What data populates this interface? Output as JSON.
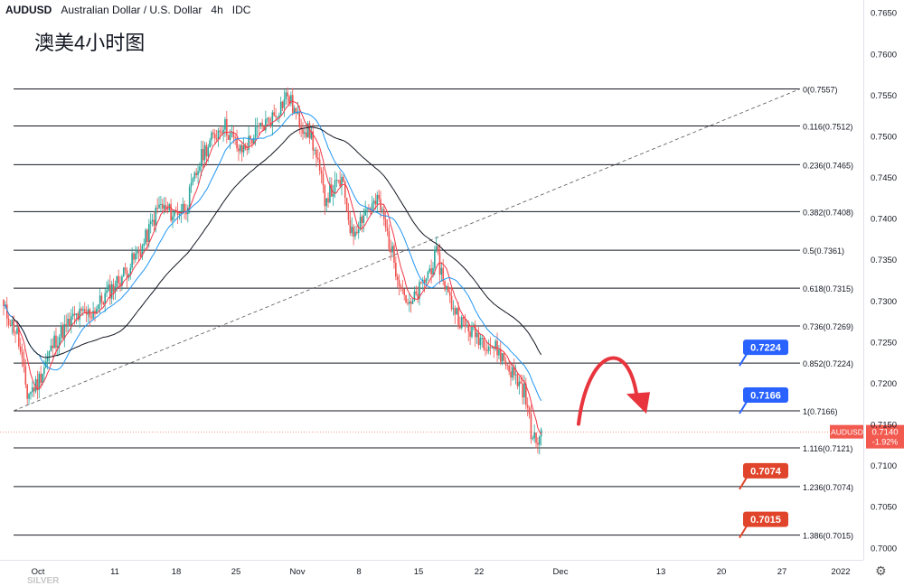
{
  "header": {
    "symbol": "AUDUSD",
    "name": "Australian Dollar / U.S. Dollar",
    "interval": "4h",
    "source": "IDC"
  },
  "chart_title": "澳美4小时图",
  "watermark": "SILVER",
  "colors": {
    "up": "#26a69a",
    "down": "#ef5350",
    "fast_ma": "#f23645",
    "mid_ma": "#2196f3",
    "slow_ma": "#131722",
    "fib_line": "#131722",
    "label_blue": "#2962ff",
    "label_red": "#e0452b",
    "price_label": "#f25a4f"
  },
  "chart_data": {
    "type": "candlestick",
    "y_axis": {
      "ticks": [
        "0.7000",
        "0.7050",
        "0.7100",
        "0.7150",
        "0.7200",
        "0.7250",
        "0.7300",
        "0.7350",
        "0.7400",
        "0.7450",
        "0.7500",
        "0.7550",
        "0.7600",
        "0.7650"
      ],
      "range": [
        0.6985,
        0.7665
      ]
    },
    "x_axis": {
      "ticks": [
        "Oct",
        "11",
        "18",
        "25",
        "Nov",
        "8",
        "15",
        "22",
        "Dec",
        "13",
        "20",
        "27",
        "2022"
      ]
    },
    "current_price": {
      "label": "AUDUSD",
      "value": "0.7140",
      "change": "-1.92%"
    },
    "fib_levels": [
      {
        "label": "0(0.7557)",
        "value": 0.7557
      },
      {
        "label": "0.116(0.7512)",
        "value": 0.7512
      },
      {
        "label": "0.236(0.7465)",
        "value": 0.7465
      },
      {
        "label": "0.382(0.7408)",
        "value": 0.7408
      },
      {
        "label": "0.5(0.7361)",
        "value": 0.7361
      },
      {
        "label": "0.618(0.7315)",
        "value": 0.7315
      },
      {
        "label": "0.736(0.7269)",
        "value": 0.7269
      },
      {
        "label": "0.852(0.7224)",
        "value": 0.7224
      },
      {
        "label": "1(0.7166)",
        "value": 0.7166
      },
      {
        "label": "1.116(0.7121)",
        "value": 0.7121
      },
      {
        "label": "1.236(0.7074)",
        "value": 0.7074
      },
      {
        "label": "1.386(0.7015)",
        "value": 0.7015
      }
    ],
    "callouts": [
      {
        "text": "0.7224",
        "value": 0.7224,
        "style": "blue"
      },
      {
        "text": "0.7166",
        "value": 0.7166,
        "style": "blue"
      },
      {
        "text": "0.7074",
        "value": 0.7074,
        "style": "red"
      },
      {
        "text": "0.7015",
        "value": 0.7015,
        "style": "red"
      }
    ],
    "price_anchors": [
      [
        0,
        0.729
      ],
      [
        8,
        0.726
      ],
      [
        14,
        0.7185
      ],
      [
        20,
        0.72
      ],
      [
        30,
        0.725
      ],
      [
        42,
        0.728
      ],
      [
        52,
        0.7285
      ],
      [
        62,
        0.731
      ],
      [
        72,
        0.7335
      ],
      [
        82,
        0.7365
      ],
      [
        92,
        0.7415
      ],
      [
        100,
        0.7405
      ],
      [
        108,
        0.7415
      ],
      [
        118,
        0.748
      ],
      [
        130,
        0.7515
      ],
      [
        140,
        0.748
      ],
      [
        150,
        0.7505
      ],
      [
        160,
        0.7525
      ],
      [
        168,
        0.755
      ],
      [
        174,
        0.752
      ],
      [
        182,
        0.75
      ],
      [
        190,
        0.7425
      ],
      [
        200,
        0.7445
      ],
      [
        206,
        0.738
      ],
      [
        214,
        0.741
      ],
      [
        222,
        0.742
      ],
      [
        232,
        0.734
      ],
      [
        240,
        0.729
      ],
      [
        248,
        0.732
      ],
      [
        256,
        0.7355
      ],
      [
        264,
        0.73
      ],
      [
        272,
        0.727
      ],
      [
        282,
        0.7255
      ],
      [
        292,
        0.724
      ],
      [
        300,
        0.7215
      ],
      [
        308,
        0.719
      ],
      [
        313,
        0.713
      ],
      [
        316,
        0.713
      ],
      [
        318,
        0.714
      ]
    ],
    "candle_count": 319
  }
}
